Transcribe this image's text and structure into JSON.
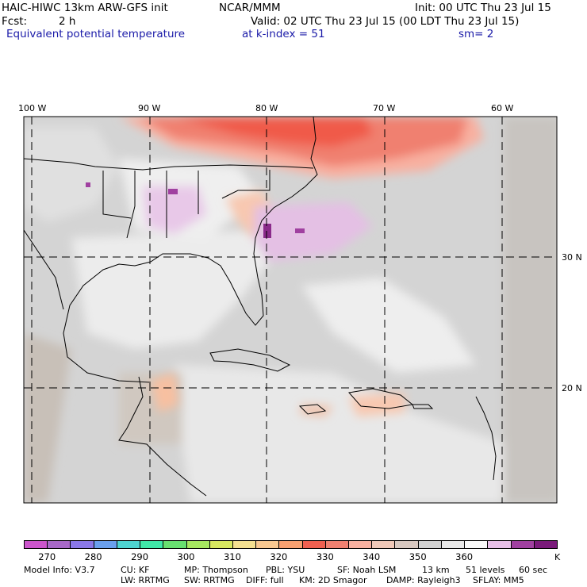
{
  "header": {
    "model": "HAIC-HIWC 13km ARW-GFS init",
    "org": "NCAR/MMM",
    "init": "Init: 00 UTC Thu 23 Jul 15",
    "fcst_label": "Fcst:",
    "fcst_value": "2 h",
    "valid": "Valid: 02 UTC Thu 23 Jul 15 (00 LDT Thu 23 Jul 15)",
    "field": "Equivalent potential temperature",
    "level": "at k-index = 51",
    "smooth": "sm= 2"
  },
  "map_axes": {
    "longitude_labels": [
      "100 W",
      "90 W",
      "80 W",
      "70 W",
      "60 W"
    ],
    "latitude_labels": [
      "30 N",
      "20 N"
    ]
  },
  "colorbar": {
    "unit": "K",
    "labels": [
      "270",
      "280",
      "290",
      "300",
      "310",
      "320",
      "330",
      "340",
      "350",
      "360"
    ],
    "colors": [
      "#cc55cc",
      "#a868c8",
      "#8a78e8",
      "#6aa0ee",
      "#4ed3d0",
      "#40e8a8",
      "#68e070",
      "#a6e860",
      "#d8e860",
      "#f4e090",
      "#f8c890",
      "#f8a070",
      "#f06050",
      "#f08070",
      "#f8b0a0",
      "#f0c8b8",
      "#d8c8c0",
      "#d0d0d0",
      "#e8e8e8",
      "#f8f8f8",
      "#e8c0e8",
      "#a040a0",
      "#7a1a7a"
    ]
  },
  "footer": {
    "line1": [
      "Model Info: V3.7",
      "CU: KF",
      "MP: Thompson",
      "PBL: YSU",
      "SF: Noah LSM",
      "13 km",
      "51 levels",
      "60 sec"
    ],
    "line2": [
      "LW: RRTMG",
      "SW: RRTMG",
      "DIFF: full",
      "KM: 2D Smagor",
      "DAMP: Rayleigh3",
      "SFLAY: MM5"
    ]
  }
}
